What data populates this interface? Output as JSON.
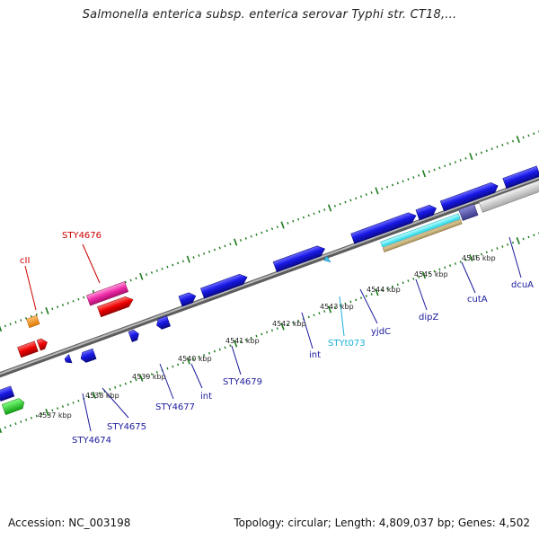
{
  "title": "Salmonella enterica subsp. enterica serovar Typhi str. CT18,...",
  "footer": {
    "accession": "Accession: NC_003198",
    "summary": "Topology: circular; Length: 4,809,037 bp; Genes: 4,502"
  },
  "colors": {
    "forward_gene": "#1a1adf",
    "backbone": "#8a8a8a",
    "tick_mark": "#1d7a1d",
    "label_default": "#1a1a9c",
    "label_red": "#cc0000",
    "label_cyan": "#1ab0d8"
  },
  "ruler": [
    "4537 kbp",
    "4538 kbp",
    "4539 kbp",
    "4540 kbp",
    "4541 kbp",
    "4542 kbp",
    "4543 kbp",
    "4544 kbp",
    "4545 kbp",
    "4546 kbp"
  ],
  "gene_labels": [
    "cII",
    "STY4676",
    "STY4674",
    "STY4675",
    "STY4677",
    "int",
    "STY4679",
    "int",
    "STYt073",
    "yjdC",
    "dipZ",
    "cutA",
    "dcuA"
  ]
}
